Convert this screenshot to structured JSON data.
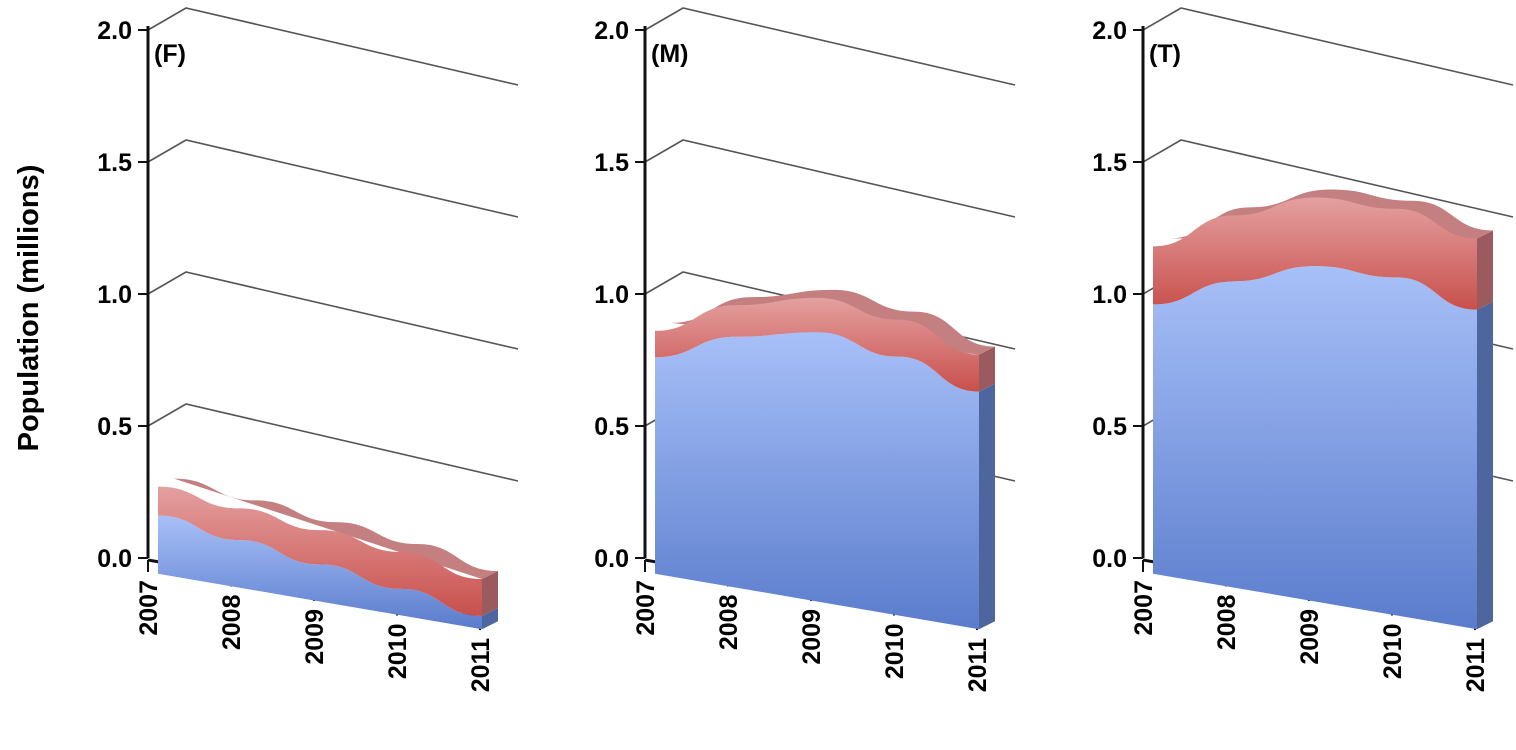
{
  "figure": {
    "ylabel": "Population (millions)"
  },
  "colors": {
    "bottom_front_top": "#a8c0f8",
    "bottom_front_bottom": "#5a7ccc",
    "bottom_side": "#4d669e",
    "top_front_top": "#e4a0a0",
    "top_front_bottom": "#c8504c",
    "top_side": "#9a5a5e",
    "top_crest": "#c47f81"
  },
  "chart_data": [
    {
      "type": "area",
      "stacked": true,
      "three_d": true,
      "panel_label": "(F)",
      "categories": [
        "2007",
        "2008",
        "2009",
        "2010",
        "2011"
      ],
      "ylim": [
        0,
        2.0
      ],
      "yticks": [
        "0.0",
        "0.5",
        "1.0",
        "1.5",
        "2.0"
      ],
      "grid": true,
      "series": [
        {
          "values": [
            0.22,
            0.18,
            0.14,
            0.1,
            0.05
          ]
        },
        {
          "values": [
            0.11,
            0.12,
            0.13,
            0.14,
            0.14
          ]
        }
      ]
    },
    {
      "type": "area",
      "stacked": true,
      "three_d": true,
      "panel_label": "(M)",
      "categories": [
        "2007",
        "2008",
        "2009",
        "2010",
        "2011"
      ],
      "ylim": [
        0,
        2.0
      ],
      "yticks": [
        "0.0",
        "0.5",
        "1.0",
        "1.5",
        "2.0"
      ],
      "grid": true,
      "series": [
        {
          "values": [
            0.82,
            0.95,
            1.02,
            0.98,
            0.9
          ]
        },
        {
          "values": [
            0.1,
            0.12,
            0.13,
            0.14,
            0.14
          ]
        }
      ]
    },
    {
      "type": "area",
      "stacked": true,
      "three_d": true,
      "panel_label": "(T)",
      "categories": [
        "2007",
        "2008",
        "2009",
        "2010",
        "2011"
      ],
      "ylim": [
        0,
        2.0
      ],
      "yticks": [
        "0.0",
        "0.5",
        "1.0",
        "1.5",
        "2.0"
      ],
      "grid": true,
      "series": [
        {
          "values": [
            1.02,
            1.16,
            1.27,
            1.28,
            1.21
          ]
        },
        {
          "values": [
            0.22,
            0.25,
            0.26,
            0.26,
            0.27
          ]
        }
      ]
    }
  ]
}
